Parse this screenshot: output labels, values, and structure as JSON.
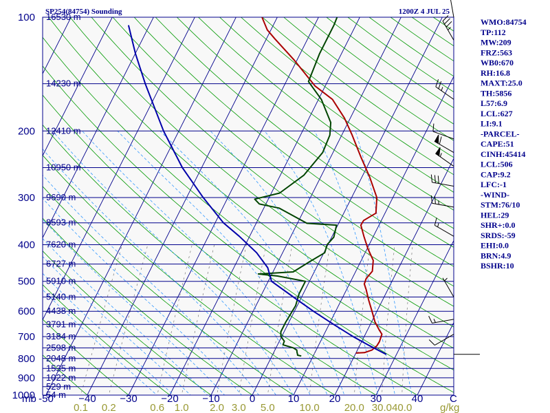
{
  "header": {
    "station": "SP254(84754) Sounding",
    "valid": "1200Z  4 JUL 25"
  },
  "side_panel": {
    "lines": [
      "WMO:84754",
      "TP:112",
      "MW:209",
      "FRZ:563",
      "WB0:670",
      "RH:16.8",
      "MAXT:25.0",
      "TH:5856",
      "L57:6.9",
      "LCL:627",
      "LI:9.1",
      "-PARCEL-",
      "CAPE:51",
      "CINH:45414",
      "LCL:506",
      "CAP:9.2",
      "LFC:-1",
      "-WIND-",
      "STM:76/10",
      "HEL:29",
      "SHR+:0.0",
      "SRDS:-59",
      "EHI:0.0",
      "BRN:4.9",
      "BSHR:10"
    ]
  },
  "colors": {
    "isobar": "#00008b",
    "isotherm": "#00008b",
    "dry_adiabat": "#009900",
    "moist_adiabat": "#3399ff",
    "mixing_ratio": "#777777",
    "temperature": "#aa0000",
    "dewpoint": "#004400",
    "parcel": "#0000aa",
    "text": "#00008b",
    "mixing_ratio_text": "#999933",
    "panel_bg": "#f8f8f8"
  },
  "chart_data": {
    "type": "line",
    "title": "SP254(84754) Sounding",
    "subtitle": "1200Z  4 JUL 25",
    "y_scale": "log",
    "ylim": [
      1000,
      100
    ],
    "xlim": [
      -50,
      50
    ],
    "pressure_ticks": [
      {
        "p": 100,
        "label": "100"
      },
      {
        "p": 200,
        "label": "200"
      },
      {
        "p": 300,
        "label": "300"
      },
      {
        "p": 400,
        "label": "400"
      },
      {
        "p": 500,
        "label": "500"
      },
      {
        "p": 600,
        "label": "600"
      },
      {
        "p": 700,
        "label": "700"
      },
      {
        "p": 800,
        "label": "800"
      },
      {
        "p": 900,
        "label": "900"
      },
      {
        "p": 1000,
        "label": "1000"
      }
    ],
    "height_labels": [
      {
        "p": 100,
        "label": "16530 m"
      },
      {
        "p": 150,
        "label": "14230 m"
      },
      {
        "p": 200,
        "label": "12410 m"
      },
      {
        "p": 250,
        "label": "10950 m"
      },
      {
        "p": 300,
        "label": "9690 m"
      },
      {
        "p": 350,
        "label": "8593 m"
      },
      {
        "p": 400,
        "label": "7620 m"
      },
      {
        "p": 450,
        "label": "6727 m"
      },
      {
        "p": 500,
        "label": "5910 m"
      },
      {
        "p": 550,
        "label": "5140 m"
      },
      {
        "p": 600,
        "label": "4438 m"
      },
      {
        "p": 650,
        "label": "3791 m"
      },
      {
        "p": 700,
        "label": "3184 m"
      },
      {
        "p": 750,
        "label": "2598 m"
      },
      {
        "p": 800,
        "label": "2048 m"
      },
      {
        "p": 850,
        "label": "1535 m"
      },
      {
        "p": 900,
        "label": "1022 m"
      },
      {
        "p": 950,
        "label": "529 m"
      },
      {
        "p": 1000,
        "label": "54 m"
      }
    ],
    "x_axis_unit_left": "mb",
    "x_ticks": [
      {
        "value": -50,
        "label": "-50"
      },
      {
        "value": -40,
        "label": "−40"
      },
      {
        "value": -30,
        "label": "−30"
      },
      {
        "value": -20,
        "label": "−20"
      },
      {
        "value": -10,
        "label": "−10"
      },
      {
        "value": 0,
        "label": "0"
      },
      {
        "value": 10,
        "label": "10"
      },
      {
        "value": 20,
        "label": "20"
      },
      {
        "value": 30,
        "label": "30"
      },
      {
        "value": 40,
        "label": "40"
      }
    ],
    "x_axis_unit_right": "C",
    "mixing_ratio_labels": [
      "0.1",
      "0.2",
      "0.6",
      "1.0",
      "2.0",
      "3.0",
      "5.0",
      "10.0",
      "20.0",
      "30.0",
      "40.0"
    ],
    "mixing_ratio_unit": "g/kg",
    "series": [
      {
        "key": "temperature",
        "points": [
          [
            774,
            20.0
          ],
          [
            772,
            22.0
          ],
          [
            760,
            23.5
          ],
          [
            740,
            24.2
          ],
          [
            722,
            24.3
          ],
          [
            690,
            24.0
          ],
          [
            672,
            22.8
          ],
          [
            640,
            20.8
          ],
          [
            600,
            18.8
          ],
          [
            560,
            16.6
          ],
          [
            525,
            14.7
          ],
          [
            508,
            13.6
          ],
          [
            492,
            13.4
          ],
          [
            470,
            14.0
          ],
          [
            440,
            12.9
          ],
          [
            410,
            10.2
          ],
          [
            380,
            7.7
          ],
          [
            355,
            5.6
          ],
          [
            345,
            5.7
          ],
          [
            330,
            7.8
          ],
          [
            300,
            6.1
          ],
          [
            265,
            1.9
          ],
          [
            235,
            -2.6
          ],
          [
            205,
            -7.5
          ],
          [
            185,
            -11.4
          ],
          [
            165,
            -16.6
          ],
          [
            152,
            -22.5
          ],
          [
            130,
            -30.6
          ],
          [
            114,
            -38.0
          ],
          [
            108,
            -40.9
          ],
          [
            100,
            -43.7
          ]
        ]
      },
      {
        "key": "dewpoint",
        "points": [
          [
            788,
            7.1
          ],
          [
            784,
            6.1
          ],
          [
            780,
            6.0
          ],
          [
            770,
            5.6
          ],
          [
            760,
            5.3
          ],
          [
            750,
            4.2
          ],
          [
            736,
            1.3
          ],
          [
            720,
            1.2
          ],
          [
            700,
            -0.2
          ],
          [
            680,
            -0.8
          ],
          [
            640,
            -0.8
          ],
          [
            580,
            -0.4
          ],
          [
            540,
            -1.0
          ],
          [
            500,
            -1.0
          ],
          [
            484,
            -8.4
          ],
          [
            478,
            -13.3
          ],
          [
            472,
            -5.1
          ],
          [
            445,
            -2.5
          ],
          [
            420,
            0.2
          ],
          [
            400,
            -0.2
          ],
          [
            382,
            0.5
          ],
          [
            355,
            -0.3
          ],
          [
            351,
            -7.7
          ],
          [
            320,
            -16.3
          ],
          [
            312,
            -21.6
          ],
          [
            303,
            -23.3
          ],
          [
            292,
            -18.0
          ],
          [
            262,
            -14.3
          ],
          [
            228,
            -12.5
          ],
          [
            205,
            -12.9
          ],
          [
            190,
            -14.2
          ],
          [
            165,
            -19.3
          ],
          [
            148,
            -24.6
          ],
          [
            125,
            -25.3
          ],
          [
            105,
            -25.3
          ],
          [
            100,
            -25.5
          ]
        ]
      },
      {
        "key": "parcel",
        "points": [
          [
            780,
            27.5
          ],
          [
            740,
            22.4
          ],
          [
            700,
            17.3
          ],
          [
            650,
            11.1
          ],
          [
            600,
            4.6
          ],
          [
            550,
            -2.0
          ],
          [
            500,
            -9.2
          ],
          [
            460,
            -11.8
          ],
          [
            420,
            -16.3
          ],
          [
            380,
            -22.5
          ],
          [
            350,
            -28.0
          ],
          [
            300,
            -36.0
          ],
          [
            250,
            -44.7
          ],
          [
            200,
            -53.7
          ],
          [
            150,
            -63.9
          ],
          [
            125,
            -69.9
          ],
          [
            105,
            -75.1
          ]
        ]
      }
    ],
    "wind_barbs": [
      {
        "p": 100,
        "dir": 350,
        "kt": 15
      },
      {
        "p": 115,
        "dir": 330,
        "kt": 35
      },
      {
        "p": 165,
        "dir": 305,
        "kt": 25
      },
      {
        "p": 210,
        "dir": 290,
        "kt": 10
      },
      {
        "p": 228,
        "dir": 300,
        "kt": 60
      },
      {
        "p": 248,
        "dir": 305,
        "kt": 55
      },
      {
        "p": 280,
        "dir": 280,
        "kt": 30
      },
      {
        "p": 318,
        "dir": 280,
        "kt": 25
      },
      {
        "p": 380,
        "dir": 300,
        "kt": 15
      },
      {
        "p": 550,
        "dir": 330,
        "kt": 5
      },
      {
        "p": 630,
        "dir": 260,
        "kt": 15
      },
      {
        "p": 690,
        "dir": 240,
        "kt": 10
      },
      {
        "p": 780,
        "dir": 90,
        "kt": 0
      }
    ],
    "grid": true
  }
}
